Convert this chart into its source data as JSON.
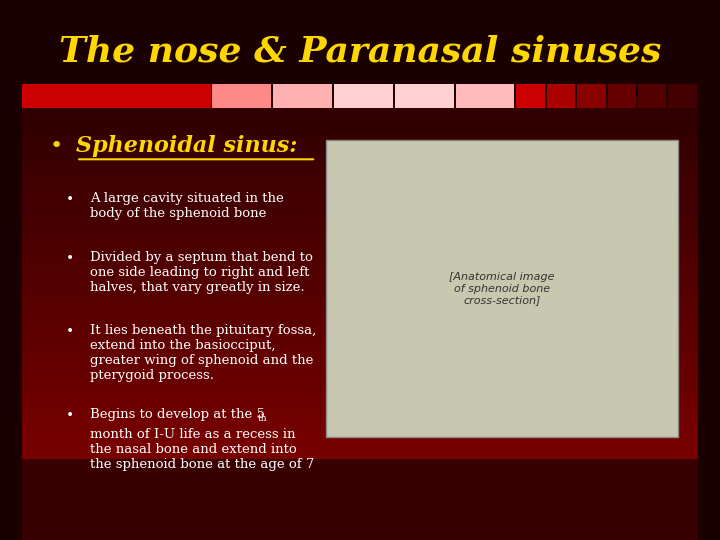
{
  "title": "The nose & Paranasal sinuses",
  "title_color": "#FFD700",
  "title_italic": true,
  "bg_color_top": "#1a0000",
  "bg_color_bottom": "#8B0000",
  "bullet_main": "Sphenoidal sinus:",
  "bullet_main_color": "#FFD700",
  "bullets": [
    "A large cavity situated in the\nbody of the sphenoid bone",
    "Divided by a septum that bend to\none side leading to right and left\nhalves, that vary greatly in size.",
    "It lies beneath the pituitary fossa,\nextend into the basiocciput,\ngreater wing of sphenoid and the\npterygoid process.",
    "Begins to develop at the 5ᵗ˾sth˾\nmonth of I-U life as a recess in\nthe nasal bone and extend into\nthe sphenoid bone at the age of 7"
  ],
  "bullet_text_color": "#FFFFFF",
  "bar_colors": [
    "#CC0000",
    "#FF6666",
    "#FFAAAA",
    "#FFD0D0",
    "#FFD0D0",
    "#CC0000",
    "#AA0000",
    "#880000",
    "#660000",
    "#550000",
    "#440000"
  ],
  "figsize": [
    7.2,
    5.4
  ],
  "dpi": 100
}
